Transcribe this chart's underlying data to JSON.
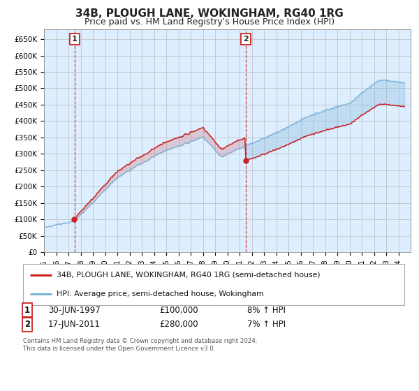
{
  "title": "34B, PLOUGH LANE, WOKINGHAM, RG40 1RG",
  "subtitle": "Price paid vs. HM Land Registry's House Price Index (HPI)",
  "title_fontsize": 11,
  "subtitle_fontsize": 9,
  "ylabel_ticks": [
    "£0",
    "£50K",
    "£100K",
    "£150K",
    "£200K",
    "£250K",
    "£300K",
    "£350K",
    "£400K",
    "£450K",
    "£500K",
    "£550K",
    "£600K",
    "£650K"
  ],
  "ylim": [
    0,
    680000
  ],
  "ytick_vals": [
    0,
    50000,
    100000,
    150000,
    200000,
    250000,
    300000,
    350000,
    400000,
    450000,
    500000,
    550000,
    600000,
    650000
  ],
  "sale1_year": 1997.5,
  "sale1_price": 100000,
  "sale2_year": 2011.5,
  "sale2_price": 280000,
  "hpi_color": "#7ab4d8",
  "price_color": "#cc2222",
  "bg_fill_color": "#ddeeff",
  "legend_label1": "34B, PLOUGH LANE, WOKINGHAM, RG40 1RG (semi-detached house)",
  "legend_label2": "HPI: Average price, semi-detached house, Wokingham",
  "annotation1_label": "1",
  "annotation1_date": "30-JUN-1997",
  "annotation1_price": "£100,000",
  "annotation1_hpi": "8% ↑ HPI",
  "annotation2_label": "2",
  "annotation2_date": "17-JUN-2011",
  "annotation2_price": "£280,000",
  "annotation2_hpi": "7% ↑ HPI",
  "footer": "Contains HM Land Registry data © Crown copyright and database right 2024.\nThis data is licensed under the Open Government Licence v3.0.",
  "background_color": "#ffffff",
  "grid_color": "#bbbbbb"
}
